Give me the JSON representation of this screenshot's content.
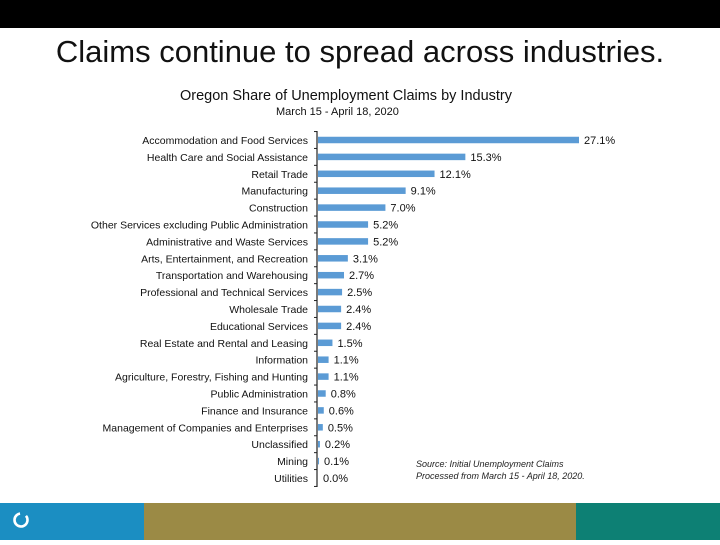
{
  "slide": {
    "title": "Claims continue to spread across industries."
  },
  "colors": {
    "top_bar": "#000000",
    "bar": "#5b9bd5",
    "footer_blue": "#1b8ec2",
    "footer_olive": "#9b8a45",
    "footer_teal": "#0d8074",
    "logo": "#ffffff"
  },
  "footer": {
    "logo_icon": "circle-logo-icon"
  },
  "chart_data": {
    "type": "bar",
    "orientation": "horizontal",
    "title": "Oregon Share of Unemployment Claims by Industry",
    "subtitle": "March 15 - April 18, 2020",
    "source": [
      "Source: Initial Unemployment Claims",
      "Processed from March 15 - April 18, 2020."
    ],
    "categories": [
      "Accommodation and Food Services",
      "Health Care and Social Assistance",
      "Retail Trade",
      "Manufacturing",
      "Construction",
      "Other Services excluding Public Administration",
      "Administrative and Waste Services",
      "Arts, Entertainment, and Recreation",
      "Transportation and Warehousing",
      "Professional and Technical Services",
      "Wholesale Trade",
      "Educational Services",
      "Real Estate and Rental and Leasing",
      "Information",
      "Agriculture, Forestry, Fishing and Hunting",
      "Public Administration",
      "Finance and Insurance",
      "Management of Companies and Enterprises",
      "Unclassified",
      "Mining",
      "Utilities"
    ],
    "values": [
      27.1,
      15.3,
      12.1,
      9.1,
      7.0,
      5.2,
      5.2,
      3.1,
      2.7,
      2.5,
      2.4,
      2.4,
      1.5,
      1.1,
      1.1,
      0.8,
      0.6,
      0.5,
      0.2,
      0.1,
      0.0
    ],
    "labels": [
      "27.1%",
      "15.3%",
      "12.1%",
      "9.1%",
      "7.0%",
      "5.2%",
      "5.2%",
      "3.1%",
      "2.7%",
      "2.5%",
      "2.4%",
      "2.4%",
      "1.5%",
      "1.1%",
      "1.1%",
      "0.8%",
      "0.6%",
      "0.5%",
      "0.2%",
      "0.1%",
      "0.0%"
    ],
    "xlim": [
      0,
      27.1
    ],
    "grid": false,
    "legend": "none"
  }
}
